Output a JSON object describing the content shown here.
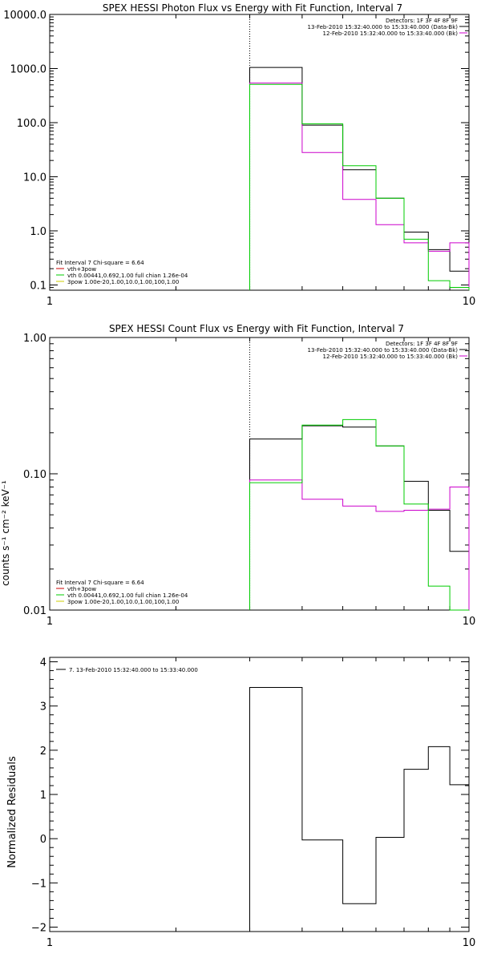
{
  "chart_data": [
    {
      "type": "line",
      "title": "SPEX HESSI Photon Flux vs Energy with Fit Function, Interval 7",
      "xlabel": "",
      "ylabel": "",
      "xscale": "log",
      "yscale": "log",
      "xlim": [
        1,
        10
      ],
      "ylim": [
        0.08,
        10000
      ],
      "xticks": [
        1,
        10
      ],
      "xtick_labels": [
        "1",
        "10"
      ],
      "yticks": [
        0.1,
        1,
        10,
        100,
        1000,
        10000
      ],
      "ytick_labels": [
        "0.1",
        "1.0",
        "10.0",
        "100.0",
        "1000.0",
        "10000.0"
      ],
      "vline": 3,
      "legend_top": {
        "header": "Detectors: 1F 3F 4F 8F 9F",
        "lines": [
          {
            "text": "13-Feb-2010 15:32:40.000 to 15:33:40.000 (Data-Bk)",
            "color": "#000000"
          },
          {
            "text": "12-Feb-2010 15:32:40.000 to 15:33:40.000 (Bk)",
            "color": "#cc00cc"
          }
        ]
      },
      "legend_bottom": {
        "header": "Fit Interval 7   Chi-square = 6.64",
        "lines": [
          {
            "text": "vth+3pow",
            "color": "#cc0000"
          },
          {
            "text": "vth 0.00441,0.692,1.00  full chian 1.26e-04",
            "color": "#00cc00"
          },
          {
            "text": "3pow 1.00e-20,1.00,10.0,1.00,100,1.00",
            "color": "#cccc00"
          }
        ]
      },
      "edges": [
        3,
        4,
        5,
        6,
        7,
        8,
        9,
        10
      ],
      "series": [
        {
          "color": "#000000",
          "values": [
            1050,
            90,
            13.5,
            4,
            0.95,
            0.45,
            0.18
          ]
        },
        {
          "color": "#cc00cc",
          "values": [
            540,
            28,
            3.8,
            1.3,
            0.6,
            0.42,
            0.6
          ]
        },
        {
          "color": "#00cc00",
          "values": [
            510,
            95,
            16,
            4,
            0.7,
            0.12,
            0.09
          ]
        }
      ]
    },
    {
      "type": "line",
      "title": "SPEX HESSI Count Flux vs Energy with Fit Function, Interval 7",
      "xlabel": "",
      "ylabel": "counts s⁻¹ cm⁻² keV⁻¹",
      "xscale": "log",
      "yscale": "log",
      "xlim": [
        1,
        10
      ],
      "ylim": [
        0.01,
        1.0
      ],
      "xticks": [
        1,
        10
      ],
      "xtick_labels": [
        "1",
        "10"
      ],
      "yticks": [
        0.01,
        0.1,
        1.0
      ],
      "ytick_labels": [
        "0.01",
        "0.10",
        "1.00"
      ],
      "vline": 3,
      "legend_top": {
        "header": "Detectors: 1F 3F 4F 8F 9F",
        "lines": [
          {
            "text": "13-Feb-2010 15:32:40.000 to 15:33:40.000 (Data-Bk)",
            "color": "#000000"
          },
          {
            "text": "12-Feb-2010 15:32:40.000 to 15:33:40.000 (Bk)",
            "color": "#cc00cc"
          }
        ]
      },
      "legend_bottom": {
        "header": "Fit Interval 7   Chi-square = 6.64",
        "lines": [
          {
            "text": "vth+3pow",
            "color": "#cc0000"
          },
          {
            "text": "vth 0.00441,0.692,1.00  full chian 1.26e-04",
            "color": "#00cc00"
          },
          {
            "text": "3pow 1.00e-20,1.00,10.0,1.00,100,1.00",
            "color": "#cccc00"
          }
        ]
      },
      "edges": [
        3,
        4,
        5,
        6,
        7,
        8,
        9,
        10
      ],
      "series": [
        {
          "color": "#000000",
          "values": [
            0.18,
            0.225,
            0.22,
            0.16,
            0.088,
            0.054,
            0.027
          ]
        },
        {
          "color": "#cc00cc",
          "values": [
            0.09,
            0.065,
            0.058,
            0.053,
            0.054,
            0.055,
            0.08
          ]
        },
        {
          "color": "#00cc00",
          "values": [
            0.086,
            0.228,
            0.25,
            0.16,
            0.06,
            0.015,
            0.008
          ]
        }
      ]
    },
    {
      "type": "line",
      "title": "",
      "xlabel": "",
      "ylabel": "Normalized Residuals",
      "xscale": "log",
      "yscale": "linear",
      "xlim": [
        1,
        10
      ],
      "ylim": [
        -2.1,
        4.1
      ],
      "xticks": [
        1,
        10
      ],
      "xtick_labels": [
        "1",
        "10"
      ],
      "yticks": [
        -2,
        -1,
        0,
        1,
        2,
        3,
        4
      ],
      "ytick_labels": [
        "−2",
        "−1",
        "0",
        "1",
        "2",
        "3",
        "4"
      ],
      "legend_top": {
        "header": "",
        "lines": [
          {
            "text": "7. 13-Feb-2010 15:32:40.000 to 15:33:40.000",
            "color": "#000000"
          }
        ]
      },
      "edges": [
        3,
        4,
        5,
        6,
        7,
        8,
        9,
        10
      ],
      "series": [
        {
          "color": "#000000",
          "values": [
            3.42,
            -0.03,
            -1.47,
            0.03,
            1.57,
            2.08,
            1.22
          ]
        }
      ]
    }
  ]
}
